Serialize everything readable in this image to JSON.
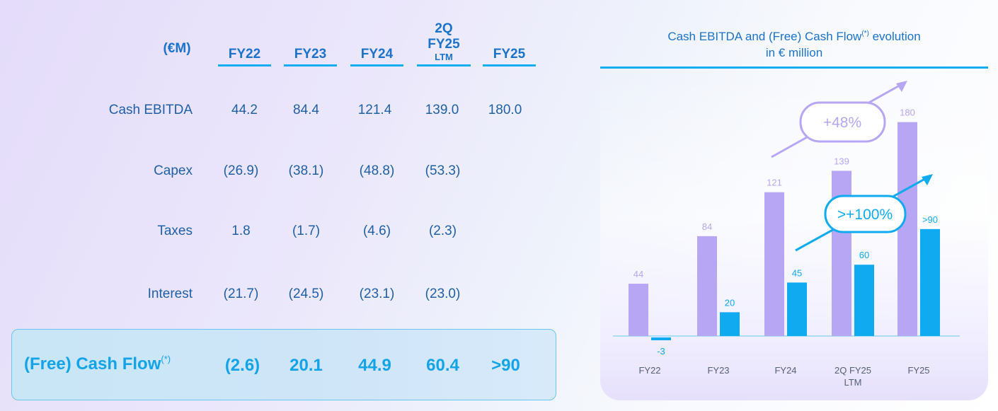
{
  "table": {
    "unit_label": "(€M)",
    "columns": [
      {
        "main": "FY22",
        "sub": ""
      },
      {
        "main": "FY23",
        "sub": ""
      },
      {
        "main": "FY24",
        "sub": ""
      },
      {
        "main": "2Q FY25",
        "sub": "LTM"
      },
      {
        "main": "FY25",
        "sub": ""
      }
    ],
    "rows": [
      {
        "label": "Cash EBITDA",
        "values": [
          "44.2",
          "84.4",
          "121.4",
          "139.0",
          "180.0"
        ]
      },
      {
        "label": "Capex",
        "values": [
          "(26.9)",
          "(38.1)",
          "(48.8)",
          "(53.3)",
          ""
        ]
      },
      {
        "label": "Taxes",
        "values": [
          "1.8",
          "(1.7)",
          "(4.6)",
          "(2.3)",
          ""
        ]
      },
      {
        "label": "Interest",
        "values": [
          "(21.7)",
          "(24.5)",
          "(23.1)",
          "(23.0)",
          ""
        ]
      }
    ],
    "total_row": {
      "label": "(Free) Cash Flow",
      "label_sup": "(*)",
      "values": [
        "(2.6)",
        "20.1",
        "44.9",
        "60.4",
        ">90"
      ]
    }
  },
  "chart_data": {
    "type": "bar",
    "title": "Cash EBITDA and (Free) Cash Flow",
    "title_sup": "(*)",
    "title_suffix": " evolution",
    "subtitle": "in € million",
    "categories": [
      "FY22",
      "FY23",
      "FY24",
      "2Q FY25",
      "FY25"
    ],
    "category_sublabels": [
      "",
      "",
      "",
      "LTM",
      ""
    ],
    "series": [
      {
        "values": [
          44,
          84,
          121,
          139,
          180
        ],
        "labels": [
          "44",
          "84",
          "121",
          "139",
          "180"
        ],
        "color": "#b7a6f3"
      },
      {
        "values": [
          -3,
          20,
          45,
          60,
          90
        ],
        "labels": [
          "-3",
          "20",
          "45",
          "60",
          ">90"
        ],
        "color": "#10aaf0"
      }
    ],
    "annotations": [
      {
        "text": "+48%",
        "color": "#b7a6f3"
      },
      {
        "text": ">+100%",
        "color": "#10aaf0"
      }
    ],
    "ylim": [
      -10,
      200
    ],
    "grid": false
  }
}
